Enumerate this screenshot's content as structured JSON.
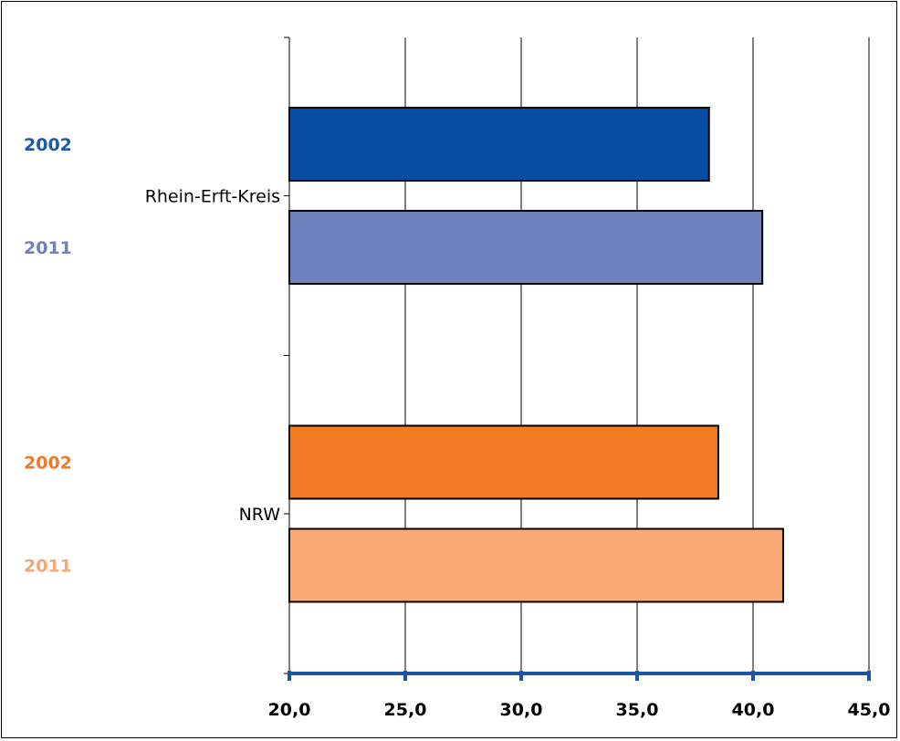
{
  "chart_data": {
    "type": "bar",
    "orientation": "horizontal",
    "title": "",
    "xlabel": "",
    "ylabel": "",
    "xlim": [
      20,
      45
    ],
    "x_ticks": [
      20,
      25,
      30,
      35,
      40,
      45
    ],
    "x_tick_labels": [
      "20,0",
      "25,0",
      "30,0",
      "35,0",
      "40,0",
      "45,0"
    ],
    "grid": "vertical",
    "legend": "none",
    "categories": [
      "Rhein-Erft-Kreis",
      "NRW"
    ],
    "groups": [
      {
        "category": "Rhein-Erft-Kreis",
        "bars": [
          {
            "label": "2002",
            "value": 38.1,
            "color": "#054ea2",
            "label_color": "#1a5aa8"
          },
          {
            "label": "2011",
            "value": 40.4,
            "color": "#6f80bf",
            "label_color": "#7080c0"
          }
        ]
      },
      {
        "category": "NRW",
        "bars": [
          {
            "label": "2002",
            "value": 38.5,
            "color": "#f47a24",
            "label_color": "#f07a2a"
          },
          {
            "label": "2011",
            "value": 41.3,
            "color": "#f9a974",
            "label_color": "#f7a774"
          }
        ]
      }
    ],
    "axis_color": "#1a56a8",
    "grid_color": "#000000"
  }
}
